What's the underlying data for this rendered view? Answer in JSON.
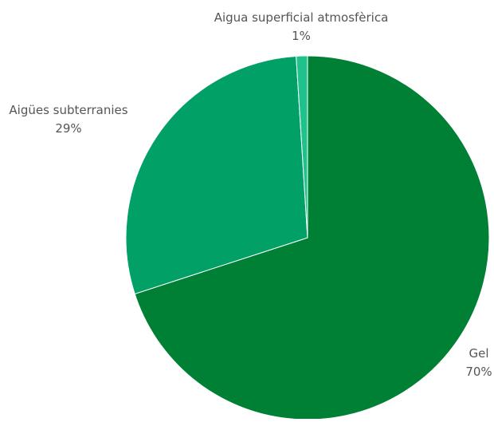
{
  "chart_data": {
    "type": "pie",
    "title": "",
    "legend": "none",
    "slices": [
      {
        "label": "Gel",
        "value": 70,
        "value_label": "70%",
        "color": "#008035"
      },
      {
        "label": "Aigües subterranies",
        "value": 29,
        "value_label": "29%",
        "color": "#00a066"
      },
      {
        "label": "Aigua superficial atmosfèrica",
        "value": 1,
        "value_label": "1%",
        "color": "#1fc18c"
      }
    ]
  }
}
